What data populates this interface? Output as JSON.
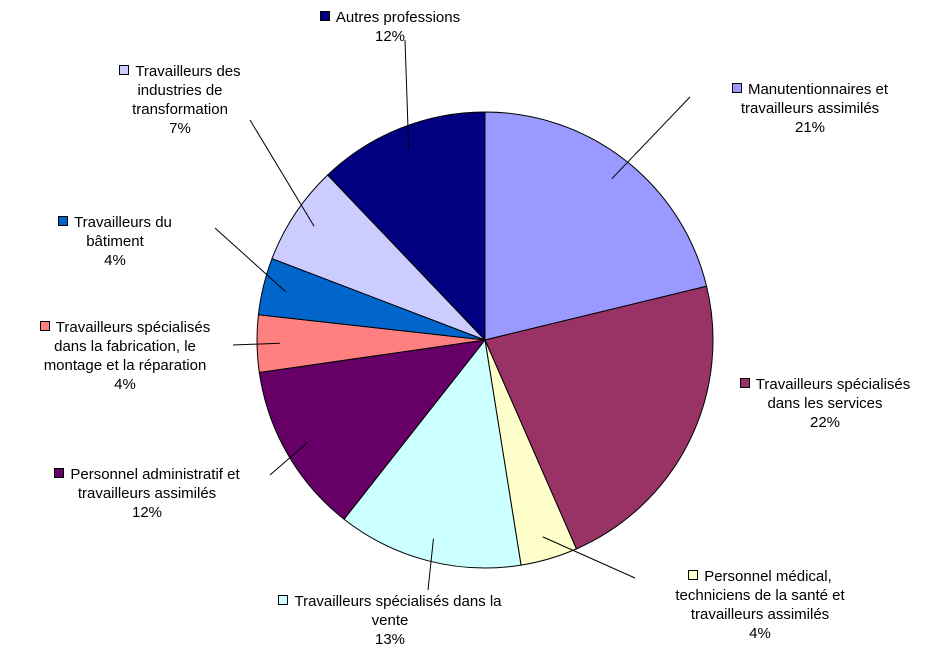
{
  "chart_data": {
    "type": "pie",
    "categories": [
      "Manutentionnaires et travailleurs assimilés",
      "Travailleurs spécialisés dans les services",
      "Personnel médical, techniciens de la santé et travailleurs assimilés",
      "Travailleurs spécialisés dans la vente",
      "Personnel administratif et travailleurs assimilés",
      "Travailleurs spécialisés dans la fabrication, le montage et la réparation",
      "Travailleurs du bâtiment",
      "Travailleurs des industries de transformation",
      "Autres professions"
    ],
    "values": [
      21,
      22,
      4,
      13,
      12,
      4,
      4,
      7,
      12
    ],
    "value_labels": [
      "21%",
      "22%",
      "4%",
      "13%",
      "12%",
      "4%",
      "4%",
      "7%",
      "12%"
    ],
    "colors": [
      "#9999ff",
      "#993366",
      "#ffffcc",
      "#ccffff",
      "#660066",
      "#ff8080",
      "#0066cc",
      "#ccccff",
      "#000080"
    ]
  }
}
